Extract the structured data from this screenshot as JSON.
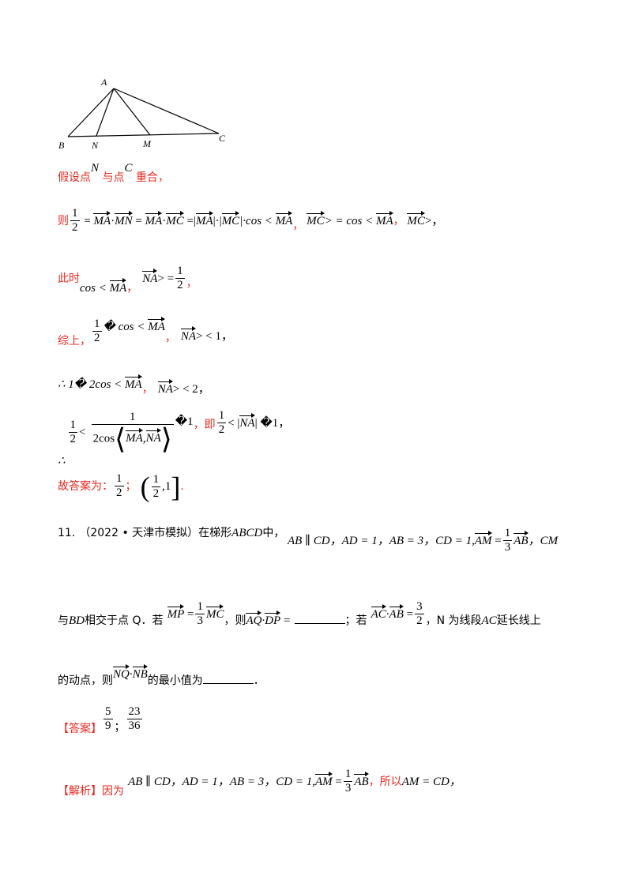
{
  "figure": {
    "label_a": "A",
    "label_b": "B",
    "label_n": "N",
    "label_m": "M",
    "label_c": "C"
  },
  "assume": {
    "prefix": "假设点",
    "p1": "N",
    "mid": "与点",
    "p2": "C",
    "suffix": "重合，"
  },
  "line_then": {
    "prefix": "则",
    "num": "1",
    "den": "2",
    "expr1": "=",
    "ma": "MA",
    "dot": "·",
    "mn": "MN",
    "eq": "=",
    "ma2": "MA",
    "dot2": "·",
    "mc": "MC",
    "eq_abs": "=|",
    "ma3": "MA",
    "abs_mid": "|·|",
    "mc2": "MC",
    "abs_end": "|·cos <",
    "ma4": "MA",
    "comma": "，",
    "mc3": "MC",
    "gt_cos": "> = cos <",
    "ma5": "MA",
    "comma2": "，",
    "mc4": "MC",
    "end": ">，"
  },
  "line_now": {
    "prefix": "此时",
    "cos": "cos <",
    "ma": "MA",
    "comma": "，",
    "na": "NA",
    "gt": "> =",
    "num": "1",
    "den": "2",
    "end": "，"
  },
  "line_sum": {
    "prefix": "综上，",
    "num": "1",
    "den": "2",
    "rest": "� cos <",
    "ma": "MA",
    "comma": "，",
    "na": "NA",
    "end": "> < 1，"
  },
  "line_therefore": {
    "text": "∴ 1� 2cos <",
    "ma": "MA",
    "comma": "，",
    "na": "NA",
    "end": "> < 2，"
  },
  "line_range": {
    "therefore": "∴",
    "num": "1",
    "den": "2",
    "lt": "<",
    "bnum": "1",
    "bden_pre": "2cos",
    "ma": "MA",
    "na": "NA",
    "after": "�1",
    "ji": "，即",
    "num2": "1",
    "den2": "2",
    "lt2": "< |",
    "na2": "NA",
    "after2": "| �1，"
  },
  "answer_prev": {
    "prefix": "故答案为：",
    "num": "1",
    "den": "2",
    "sep": "；",
    "inum": "1",
    "iden": "2",
    "iend": ",1",
    "end": "."
  },
  "problem": {
    "number": "11.",
    "source": "（2022 • 天津市模拟）在梯形",
    "abcd": "ABCD",
    "in": "中，",
    "cond": "AB ∥ CD，AD = 1，AB = 3，CD = 1,",
    "am": "AM",
    "eq": "=",
    "num": "1",
    "den": "3",
    "ab": "AB",
    "cm": "，CM",
    "l2_with": "与",
    "bd": "BD",
    "l2_cross": "相交于点 Q．若",
    "mp": "MP",
    "eq2": "=",
    "num2": "1",
    "den2": "3",
    "mc": "MC",
    "then": "，则",
    "aq": "AQ",
    "dp": "DP",
    "eq3": "=",
    "semi": "；若",
    "ac": "AC",
    "ab2": "AB",
    "eq4": "=",
    "num3": "3",
    "den3": "2",
    "n_text": "，N 为线段",
    "ac_line": "AC",
    "ext": "延长线上",
    "l3": "的动点，则",
    "nq": "NQ",
    "nb": "NB",
    "min": "的最小值为",
    "period": "．"
  },
  "answer": {
    "label": "【答案】",
    "num1": "5",
    "den1": "9",
    "sep": "；",
    "num2": "23",
    "den2": "36"
  },
  "analysis": {
    "label": "【解析】",
    "because": "因为",
    "cond": "AB ∥ CD，AD = 1，AB = 3，CD = 1,",
    "am": "AM",
    "eq": "=",
    "num": "1",
    "den": "3",
    "ab": "AB",
    "so": "，所以",
    "res": "AM = CD，"
  },
  "colors": {
    "red": "#e8281f",
    "black": "#000000"
  }
}
